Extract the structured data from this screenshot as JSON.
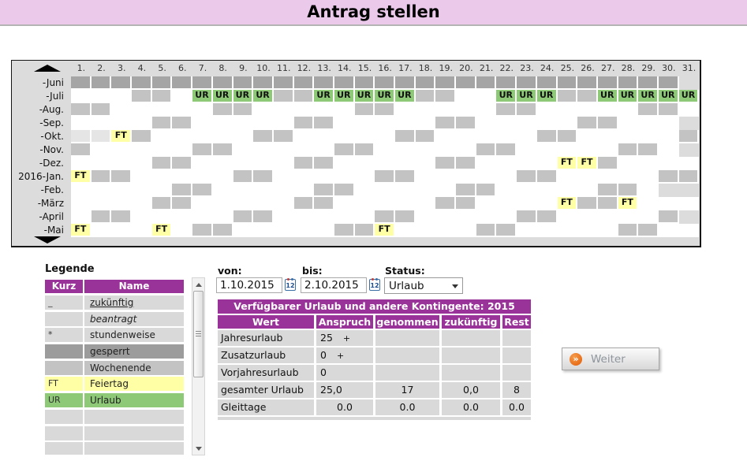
{
  "header": {
    "title": "Antrag stellen"
  },
  "calendar": {
    "days": [
      "1.",
      "2.",
      "3.",
      "4.",
      "5.",
      "6.",
      "7.",
      "8.",
      "9.",
      "10.",
      "11.",
      "12.",
      "13.",
      "14.",
      "15.",
      "16.",
      "17.",
      "18.",
      "19.",
      "20.",
      "21.",
      "22.",
      "23.",
      "24.",
      "25.",
      "26.",
      "27.",
      "28.",
      "29.",
      "30.",
      "31."
    ],
    "cell_labels": {
      "ft": "FT",
      "ur": "UR"
    },
    "months": [
      {
        "label": "-Juni",
        "days": [
          "p",
          "p",
          "p",
          "p",
          "p",
          "p",
          "p",
          "p",
          "p",
          "p",
          "p",
          "p",
          "p",
          "p",
          "p",
          "p",
          "p",
          "p",
          "p",
          "p",
          "p",
          "p",
          "p",
          "p",
          "p",
          "p",
          "p",
          "p",
          "p",
          "p",
          "x"
        ]
      },
      {
        "label": "-Juli",
        "days": [
          "w",
          "w",
          "w",
          "we",
          "we",
          "w",
          "ur",
          "ur",
          "ur",
          "ur",
          "we",
          "we",
          "ur",
          "ur",
          "ur",
          "ur",
          "ur",
          "we",
          "we",
          "w",
          "w",
          "ur",
          "ur",
          "ur",
          "we",
          "we",
          "ur",
          "ur",
          "ur",
          "ur",
          "ur"
        ]
      },
      {
        "label": "-Aug.",
        "days": [
          "we",
          "we",
          "w",
          "w",
          "w",
          "w",
          "w",
          "we",
          "we",
          "w",
          "w",
          "w",
          "w",
          "w",
          "we",
          "we",
          "w",
          "w",
          "w",
          "w",
          "w",
          "we",
          "we",
          "w",
          "w",
          "w",
          "w",
          "w",
          "we",
          "we",
          "w"
        ]
      },
      {
        "label": "-Sep.",
        "days": [
          "w",
          "w",
          "w",
          "w",
          "we",
          "we",
          "w",
          "w",
          "w",
          "w",
          "w",
          "we",
          "we",
          "w",
          "w",
          "w",
          "w",
          "w",
          "we",
          "we",
          "w",
          "w",
          "w",
          "w",
          "w",
          "we",
          "we",
          "w",
          "w",
          "w",
          "x"
        ]
      },
      {
        "label": "-Okt.",
        "days": [
          "sel",
          "sel",
          "ft",
          "we",
          "w",
          "w",
          "w",
          "w",
          "w",
          "we",
          "we",
          "w",
          "w",
          "w",
          "w",
          "w",
          "we",
          "we",
          "w",
          "w",
          "w",
          "w",
          "w",
          "we",
          "we",
          "w",
          "w",
          "w",
          "w",
          "w",
          "we"
        ]
      },
      {
        "label": "-Nov.",
        "days": [
          "we",
          "w",
          "w",
          "w",
          "w",
          "w",
          "we",
          "we",
          "w",
          "w",
          "w",
          "w",
          "w",
          "we",
          "we",
          "w",
          "w",
          "w",
          "w",
          "w",
          "we",
          "we",
          "w",
          "w",
          "w",
          "w",
          "w",
          "we",
          "we",
          "w",
          "x"
        ]
      },
      {
        "label": "-Dez.",
        "days": [
          "w",
          "w",
          "w",
          "w",
          "we",
          "we",
          "w",
          "w",
          "w",
          "w",
          "w",
          "we",
          "we",
          "w",
          "w",
          "w",
          "w",
          "w",
          "we",
          "we",
          "w",
          "w",
          "w",
          "w",
          "ft",
          "ft",
          "we",
          "w",
          "w",
          "w",
          "w"
        ]
      },
      {
        "label": "2016-Jan.",
        "days": [
          "ft",
          "we",
          "we",
          "w",
          "w",
          "w",
          "w",
          "w",
          "we",
          "we",
          "w",
          "w",
          "w",
          "w",
          "w",
          "we",
          "we",
          "w",
          "w",
          "w",
          "w",
          "w",
          "we",
          "we",
          "w",
          "w",
          "w",
          "w",
          "w",
          "we",
          "we"
        ]
      },
      {
        "label": "-Feb.",
        "days": [
          "w",
          "w",
          "w",
          "w",
          "w",
          "we",
          "we",
          "w",
          "w",
          "w",
          "w",
          "w",
          "we",
          "we",
          "w",
          "w",
          "w",
          "w",
          "w",
          "we",
          "we",
          "w",
          "w",
          "w",
          "w",
          "w",
          "we",
          "we",
          "w",
          "x",
          "x"
        ]
      },
      {
        "label": "-März",
        "days": [
          "w",
          "w",
          "w",
          "w",
          "we",
          "we",
          "w",
          "w",
          "w",
          "w",
          "w",
          "we",
          "we",
          "w",
          "w",
          "w",
          "w",
          "w",
          "we",
          "we",
          "w",
          "w",
          "w",
          "w",
          "ft",
          "we",
          "we",
          "ft",
          "w",
          "w",
          "w"
        ]
      },
      {
        "label": "-April",
        "days": [
          "w",
          "we",
          "we",
          "w",
          "w",
          "w",
          "w",
          "w",
          "we",
          "we",
          "w",
          "w",
          "w",
          "w",
          "w",
          "we",
          "we",
          "w",
          "w",
          "w",
          "w",
          "w",
          "we",
          "we",
          "w",
          "w",
          "w",
          "w",
          "w",
          "we",
          "x"
        ]
      },
      {
        "label": "-Mai",
        "days": [
          "ft",
          "w",
          "w",
          "w",
          "ft",
          "w",
          "we",
          "we",
          "w",
          "w",
          "w",
          "w",
          "w",
          "we",
          "we",
          "ft",
          "w",
          "w",
          "w",
          "w",
          "we",
          "we",
          "w",
          "w",
          "w",
          "w",
          "w",
          "we",
          "we",
          "w",
          "w"
        ]
      }
    ]
  },
  "legend": {
    "title": "Legende",
    "columns": {
      "kurz": "Kurz",
      "name": "Name"
    },
    "rows": [
      {
        "kurz": "_",
        "name": "zukünftig",
        "style": "future"
      },
      {
        "kurz": "",
        "name": "beantragt",
        "style": "requested"
      },
      {
        "kurz": "*",
        "name": "stundenweise",
        "style": "hourly"
      },
      {
        "kurz": "",
        "name": "gesperrt",
        "style": "locked"
      },
      {
        "kurz": "",
        "name": "Wochenende",
        "style": "weekend"
      },
      {
        "kurz": "FT",
        "name": "Feiertag",
        "style": "holiday"
      },
      {
        "kurz": "UR",
        "name": "Urlaub",
        "style": "vacation"
      },
      {
        "kurz": "",
        "name": "",
        "style": "empty"
      },
      {
        "kurz": "",
        "name": "",
        "style": "empty"
      },
      {
        "kurz": "",
        "name": "",
        "style": "empty"
      }
    ]
  },
  "form": {
    "von_label": "von:",
    "von_value": "1.10.2015",
    "bis_label": "bis:",
    "bis_value": "2.10.2015",
    "status_label": "Status:",
    "status_value": "Urlaub",
    "calendar_icon_text": "12"
  },
  "kontingente": {
    "title": "Verfügbarer Urlaub und andere Kontingente: 2015",
    "columns": [
      "Wert",
      "Anspruch",
      "genommen",
      "zukünftig",
      "Rest"
    ],
    "rows": [
      {
        "wert": "Jahresurlaub",
        "anspruch": "25",
        "plus": "+",
        "genommen": "",
        "zukuenftig": "",
        "rest": ""
      },
      {
        "wert": "Zusatzurlaub",
        "anspruch": "0",
        "plus": "+",
        "genommen": "",
        "zukuenftig": "",
        "rest": ""
      },
      {
        "wert": "Vorjahresurlaub",
        "anspruch": "0",
        "plus": "",
        "genommen": "",
        "zukuenftig": "",
        "rest": ""
      },
      {
        "wert": "gesamter Urlaub",
        "anspruch": "25,0",
        "plus": "",
        "genommen": "17",
        "zukuenftig": "0,0",
        "rest": "8"
      },
      {
        "wert": "Gleittage",
        "anspruch": "0.0",
        "plus": "",
        "genommen": "0.0",
        "zukuenftig": "0.0",
        "rest": "0.0"
      }
    ]
  },
  "weiter": {
    "label": "Weiter",
    "icon_glyph": "»"
  },
  "colors": {
    "titlebar_pink": "#eac9ea",
    "table_purple": "#993399",
    "vacation_green": "#8dc977",
    "holiday_yellow": "#ffffa6",
    "weekend_gray": "#c3c3c3",
    "locked_gray": "#a5a5a5",
    "selected_gray": "#e5e5e5",
    "panel_gray": "#dcdcdc",
    "button_orange": "#e35c05"
  }
}
